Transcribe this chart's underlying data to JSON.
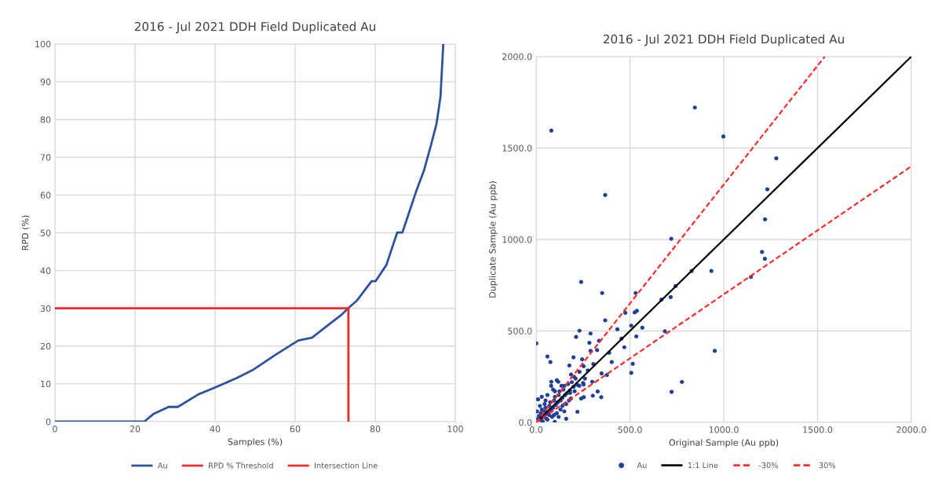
{
  "chart_data": [
    {
      "type": "line",
      "title": "2016 - Jul 2021 DDH Field Duplicated Au",
      "xlabel": "Samples (%)",
      "ylabel": "RPD (%)",
      "xlim": [
        0,
        100
      ],
      "ylim": [
        0,
        100
      ],
      "xticks": [
        0,
        20,
        40,
        60,
        80,
        100
      ],
      "yticks": [
        0,
        10,
        20,
        30,
        40,
        50,
        60,
        70,
        80,
        90,
        100
      ],
      "grid": true,
      "legend": "bottom",
      "series": [
        {
          "name": "Au",
          "color": "#2f52a0",
          "x": [
            0,
            22.3,
            24.7,
            28.4,
            30.7,
            35.8,
            39.9,
            45.3,
            49.3,
            55.4,
            60.8,
            64.2,
            68.9,
            71.6,
            73.3,
            75.3,
            79.1,
            80.1,
            82.8,
            85.5,
            86.8,
            90.2,
            92.2,
            93.9,
            95.3,
            96.3,
            97.0
          ],
          "values": [
            0,
            0,
            2.1,
            3.9,
            3.9,
            7.2,
            9.0,
            11.5,
            13.6,
            17.9,
            21.5,
            22.2,
            26.1,
            28.3,
            30.1,
            31.9,
            37.2,
            37.2,
            41.5,
            50.1,
            50.1,
            60.9,
            66.6,
            73.1,
            78.8,
            86.0,
            100
          ]
        },
        {
          "name": "RPD % Threshold",
          "color": "#ee2a2a",
          "x": [
            0,
            73.3
          ],
          "values": [
            30,
            30
          ]
        },
        {
          "name": "Intersection Line",
          "color": "#ee2a2a",
          "x": [
            73.3,
            73.3
          ],
          "values": [
            0,
            30
          ]
        }
      ]
    },
    {
      "type": "scatter",
      "title": "2016 - Jul 2021 DDH Field Duplicated Au",
      "xlabel": "Original Sample (Au ppb)",
      "ylabel": "Duplicate Sample (Au ppb)",
      "xlim": [
        0,
        2000
      ],
      "ylim": [
        0,
        2000
      ],
      "xticks": [
        {
          "value": 0,
          "label": "0.0"
        },
        {
          "value": 500,
          "label": "500.0"
        },
        {
          "value": 1000,
          "label": "1000.0"
        },
        {
          "value": 1500,
          "label": "1500.0"
        },
        {
          "value": 2000,
          "label": "2000.0"
        }
      ],
      "yticks": [
        {
          "value": 0,
          "label": "0.0"
        },
        {
          "value": 500,
          "label": "500.0"
        },
        {
          "value": 1000,
          "label": "1000.0"
        },
        {
          "value": 1500,
          "label": "1500.0"
        },
        {
          "value": 2000,
          "label": "2000.0"
        }
      ],
      "grid": true,
      "legend": "bottom",
      "series": [
        {
          "name": "Au",
          "type": "scatter",
          "marker": "circle",
          "color": "#1f3f99",
          "x": [
            81,
            846,
            998,
            1280,
            368,
            1232,
            1220,
            720,
            1204,
            1219,
            829,
            934,
            1145,
            240,
            352,
            530,
            743,
            668,
            717,
            475,
            525,
            537,
            368,
            507,
            566,
            686,
            231,
            433,
            290,
            213,
            534,
            455,
            335,
            284,
            1,
            470,
            952,
            389,
            290,
            325,
            60,
            76,
            199,
            245,
            403,
            305,
            515,
            177,
            377,
            507,
            349,
            253,
            275,
            231,
            201,
            186,
            118,
            777,
            81,
            722,
            328,
            299,
            253,
            347,
            302,
            254,
            181,
            220,
            10,
            160,
            99,
            10,
            15,
            30,
            25,
            40,
            45,
            55,
            50,
            65,
            70,
            80,
            75,
            90,
            95,
            105,
            100,
            115,
            120,
            130,
            125,
            140,
            145,
            155,
            150,
            165,
            170,
            180,
            190,
            200,
            210,
            220,
            35,
            60,
            85,
            110,
            5,
            20,
            45,
            130,
            160,
            30,
            60,
            90,
            185,
            95,
            120,
            25,
            40,
            55,
            70,
            140,
            175,
            205,
            230,
            250,
            260,
            150,
            240,
            30,
            50,
            80,
            100,
            135,
            110
          ],
          "values": [
            1595,
            1721,
            1563,
            1444,
            1243,
            1274,
            1110,
            1004,
            932,
            894,
            828,
            828,
            795,
            768,
            707,
            707,
            745,
            671,
            685,
            599,
            601,
            610,
            558,
            529,
            518,
            498,
            501,
            509,
            486,
            467,
            470,
            458,
            446,
            435,
            432,
            411,
            391,
            380,
            391,
            395,
            360,
            330,
            356,
            345,
            330,
            319,
            320,
            311,
            259,
            271,
            268,
            307,
            284,
            276,
            250,
            261,
            222,
            221,
            222,
            167,
            169,
            222,
            207,
            138,
            146,
            138,
            161,
            58,
            126,
            20,
            3,
            20,
            35,
            25,
            50,
            30,
            60,
            45,
            80,
            55,
            90,
            70,
            110,
            80,
            120,
            95,
            140,
            110,
            150,
            120,
            170,
            135,
            180,
            150,
            200,
            160,
            210,
            175,
            220,
            195,
            240,
            205,
            5,
            15,
            30,
            50,
            60,
            90,
            100,
            70,
            100,
            140,
            150,
            180,
            130,
            40,
            30,
            12,
            45,
            20,
            40,
            90,
            120,
            170,
            200,
            215,
            240,
            60,
            130,
            70,
            120,
            200,
            170,
            200,
            230
          ]
        },
        {
          "name": "1:1 Line",
          "type": "line",
          "line_style": "solid",
          "color": "#000000",
          "x": [
            0,
            2000
          ],
          "values": [
            0,
            2000
          ]
        },
        {
          "name": "-30%",
          "type": "line",
          "line_style": "dashed",
          "color": "#ff2b2b",
          "x": [
            0,
            2000
          ],
          "values": [
            0,
            1400
          ]
        },
        {
          "name": "30%",
          "type": "line",
          "line_style": "dashed",
          "color": "#ff2b2b",
          "x": [
            0,
            1538.5
          ],
          "values": [
            0,
            2000
          ]
        }
      ]
    }
  ]
}
